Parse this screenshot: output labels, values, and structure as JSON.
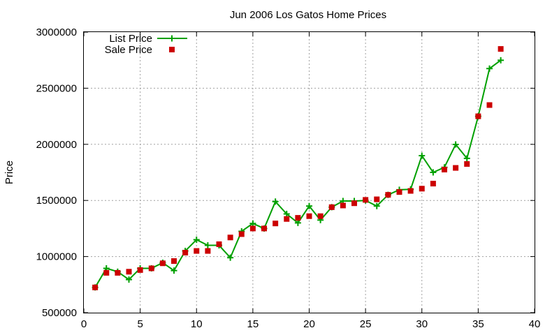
{
  "chart_data": {
    "type": "line",
    "title": "Jun 2006 Los Gatos Home Prices",
    "xlabel": "",
    "ylabel": "Price",
    "xlim": [
      0,
      40
    ],
    "ylim": [
      500000,
      3000000
    ],
    "xticks": [
      "0",
      "5",
      "10",
      "15",
      "20",
      "25",
      "30",
      "35",
      "40"
    ],
    "yticks": [
      "500000",
      "1000000",
      "1500000",
      "2000000",
      "2500000",
      "3000000"
    ],
    "grid": true,
    "legend_position": "top-left",
    "series": [
      {
        "name": "List Price",
        "style": "line+cross",
        "color": "#00a000",
        "x": [
          1,
          2,
          3,
          4,
          5,
          6,
          7,
          8,
          9,
          10,
          11,
          12,
          13,
          14,
          15,
          16,
          17,
          18,
          19,
          20,
          21,
          22,
          23,
          24,
          25,
          26,
          27,
          28,
          29,
          30,
          31,
          32,
          33,
          34,
          35,
          36,
          37
        ],
        "values": [
          725000,
          895000,
          865000,
          795000,
          895000,
          895000,
          945000,
          875000,
          1050000,
          1150000,
          1100000,
          1100000,
          990000,
          1225000,
          1295000,
          1250000,
          1490000,
          1380000,
          1300000,
          1450000,
          1325000,
          1440000,
          1495000,
          1495000,
          1500000,
          1450000,
          1550000,
          1595000,
          1599000,
          1899000,
          1750000,
          1795000,
          1999000,
          1875000,
          2250000,
          2675000,
          2749000
        ]
      },
      {
        "name": "Sale Price",
        "style": "square",
        "color": "#cc0000",
        "x": [
          1,
          2,
          3,
          4,
          5,
          6,
          7,
          8,
          9,
          10,
          11,
          12,
          13,
          14,
          15,
          16,
          17,
          18,
          19,
          20,
          21,
          22,
          23,
          24,
          25,
          26,
          27,
          28,
          29,
          30,
          31,
          32,
          33,
          34,
          35,
          36,
          37
        ],
        "values": [
          725000,
          855000,
          855000,
          865000,
          880000,
          895000,
          940000,
          960000,
          1035000,
          1050000,
          1050000,
          1110000,
          1170000,
          1200000,
          1250000,
          1250000,
          1295000,
          1335000,
          1345000,
          1360000,
          1360000,
          1440000,
          1455000,
          1475000,
          1505000,
          1510000,
          1550000,
          1575000,
          1585000,
          1605000,
          1650000,
          1775000,
          1790000,
          1825000,
          2250000,
          2350000,
          2850000
        ]
      }
    ]
  }
}
